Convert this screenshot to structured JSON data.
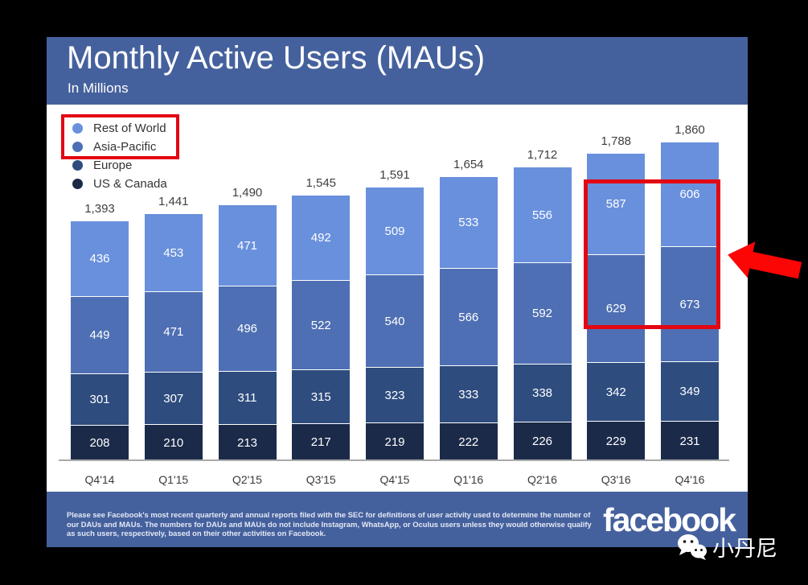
{
  "slide": {
    "title": "Monthly Active Users (MAUs)",
    "subtitle": "In Millions",
    "header_color": "#45619D",
    "footer_color": "#45619D",
    "legend": [
      {
        "label": "Rest of World",
        "color": "#6990DC"
      },
      {
        "label": "Asia-Pacific",
        "color": "#4E6FB3"
      },
      {
        "label": "Europe",
        "color": "#2E4C7E"
      },
      {
        "label": "US & Canada",
        "color": "#1B2A49"
      }
    ],
    "footer": {
      "disclaimer": "Please see Facebook's most recent quarterly and annual reports filed with the SEC for definitions of user activity used to determine the number of our DAUs and MAUs. The numbers for DAUs and MAUs do not include Instagram, WhatsApp, or Oculus users unless they would otherwise qualify as such users, respectively, based on their other activities on Facebook.",
      "logo_text": "facebook"
    },
    "watermark": {
      "text": "小丹尼"
    },
    "annotation_color": "#e30613",
    "arrow_color": "#fb0505"
  },
  "chart_data": {
    "type": "bar",
    "subtype": "stacked",
    "title": "Monthly Active Users (MAUs)",
    "unit": "In Millions",
    "categories": [
      "Q4'14",
      "Q1'15",
      "Q2'15",
      "Q3'15",
      "Q4'15",
      "Q1'16",
      "Q2'16",
      "Q3'16",
      "Q4'16"
    ],
    "series": [
      {
        "name": "US & Canada",
        "color": "#1B2A49",
        "values": [
          208,
          210,
          213,
          217,
          219,
          222,
          226,
          229,
          231
        ]
      },
      {
        "name": "Europe",
        "color": "#2E4C7E",
        "values": [
          301,
          307,
          311,
          315,
          323,
          333,
          338,
          342,
          349
        ]
      },
      {
        "name": "Asia-Pacific",
        "color": "#4E6FB3",
        "values": [
          449,
          471,
          496,
          522,
          540,
          566,
          592,
          629,
          673
        ]
      },
      {
        "name": "Rest of World",
        "color": "#6990DC",
        "values": [
          436,
          453,
          471,
          492,
          509,
          533,
          556,
          587,
          606
        ]
      }
    ],
    "totals": [
      1393,
      1441,
      1490,
      1545,
      1591,
      1654,
      1712,
      1788,
      1860
    ],
    "totals_display": [
      "1,393",
      "1,441",
      "1,490",
      "1,545",
      "1,591",
      "1,654",
      "1,712",
      "1,788",
      "1,860"
    ],
    "legend_position": "top-left",
    "grid": false,
    "annotations": {
      "legend_highlight_series": [
        "Rest of World",
        "Asia-Pacific"
      ],
      "bars_highlight_categories": [
        "Q3'16",
        "Q4'16"
      ],
      "bars_highlight_series": [
        "Rest of World",
        "Asia-Pacific"
      ],
      "arrow": "red arrow pointing left at highlighted Q4'16 segments"
    }
  }
}
